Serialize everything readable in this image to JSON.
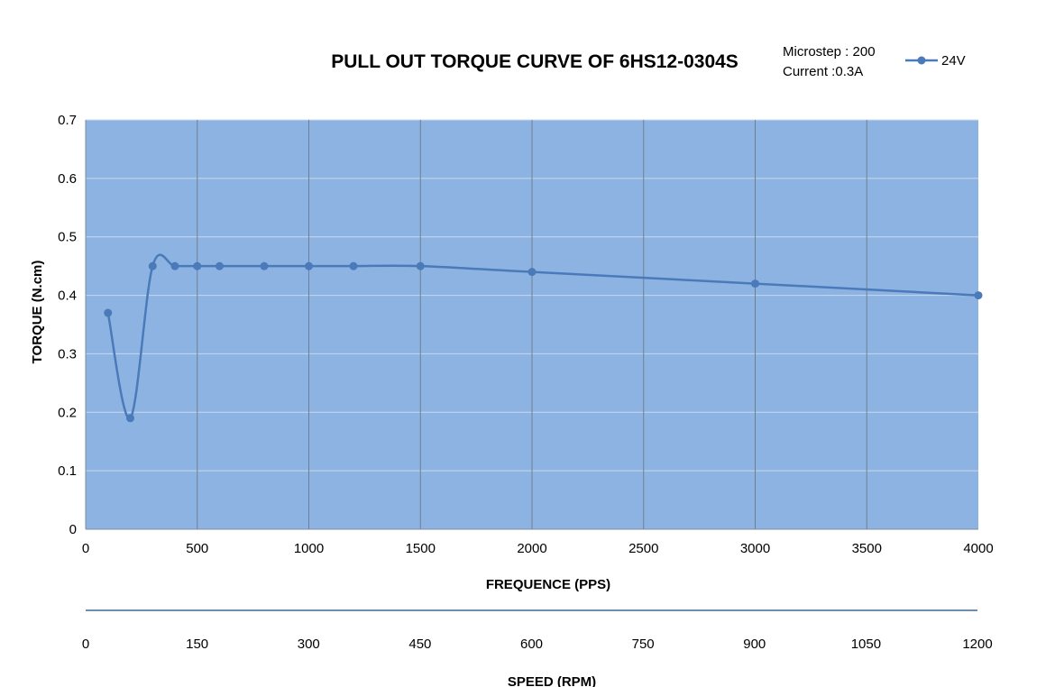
{
  "chart_data": {
    "type": "line",
    "title": "PULL OUT TORQUE CURVE OF 6HS12-0304S",
    "notes": [
      "Microstep : 200",
      "Current :0.3A"
    ],
    "xlabel": "FREQUENCE (PPS)",
    "ylabel": "TORQUE (N.cm)",
    "xlim": [
      0,
      4000
    ],
    "ylim": [
      0,
      0.7
    ],
    "x_ticks": [
      0,
      500,
      1000,
      1500,
      2000,
      2500,
      3000,
      3500,
      4000
    ],
    "y_ticks": [
      0,
      0.1,
      0.2,
      0.3,
      0.4,
      0.5,
      0.6,
      0.7
    ],
    "grid": {
      "vertical": true,
      "horizontal": true
    },
    "legend": {
      "position": "top-right"
    },
    "series": [
      {
        "name": "24V",
        "color": "#4a7ab9",
        "marker": "circle",
        "smooth": true,
        "x": [
          100,
          200,
          300,
          400,
          500,
          600,
          800,
          1000,
          1200,
          1500,
          2000,
          3000,
          4000
        ],
        "y": [
          0.37,
          0.19,
          0.45,
          0.45,
          0.45,
          0.45,
          0.45,
          0.45,
          0.45,
          0.45,
          0.44,
          0.42,
          0.4
        ]
      }
    ],
    "plot_background": "#8db3e2",
    "secondary_axis": {
      "label": "SPEED (RPM)",
      "ticks": [
        0,
        150,
        300,
        450,
        600,
        750,
        900,
        1050,
        1200
      ],
      "lim": [
        0,
        1200
      ]
    }
  }
}
